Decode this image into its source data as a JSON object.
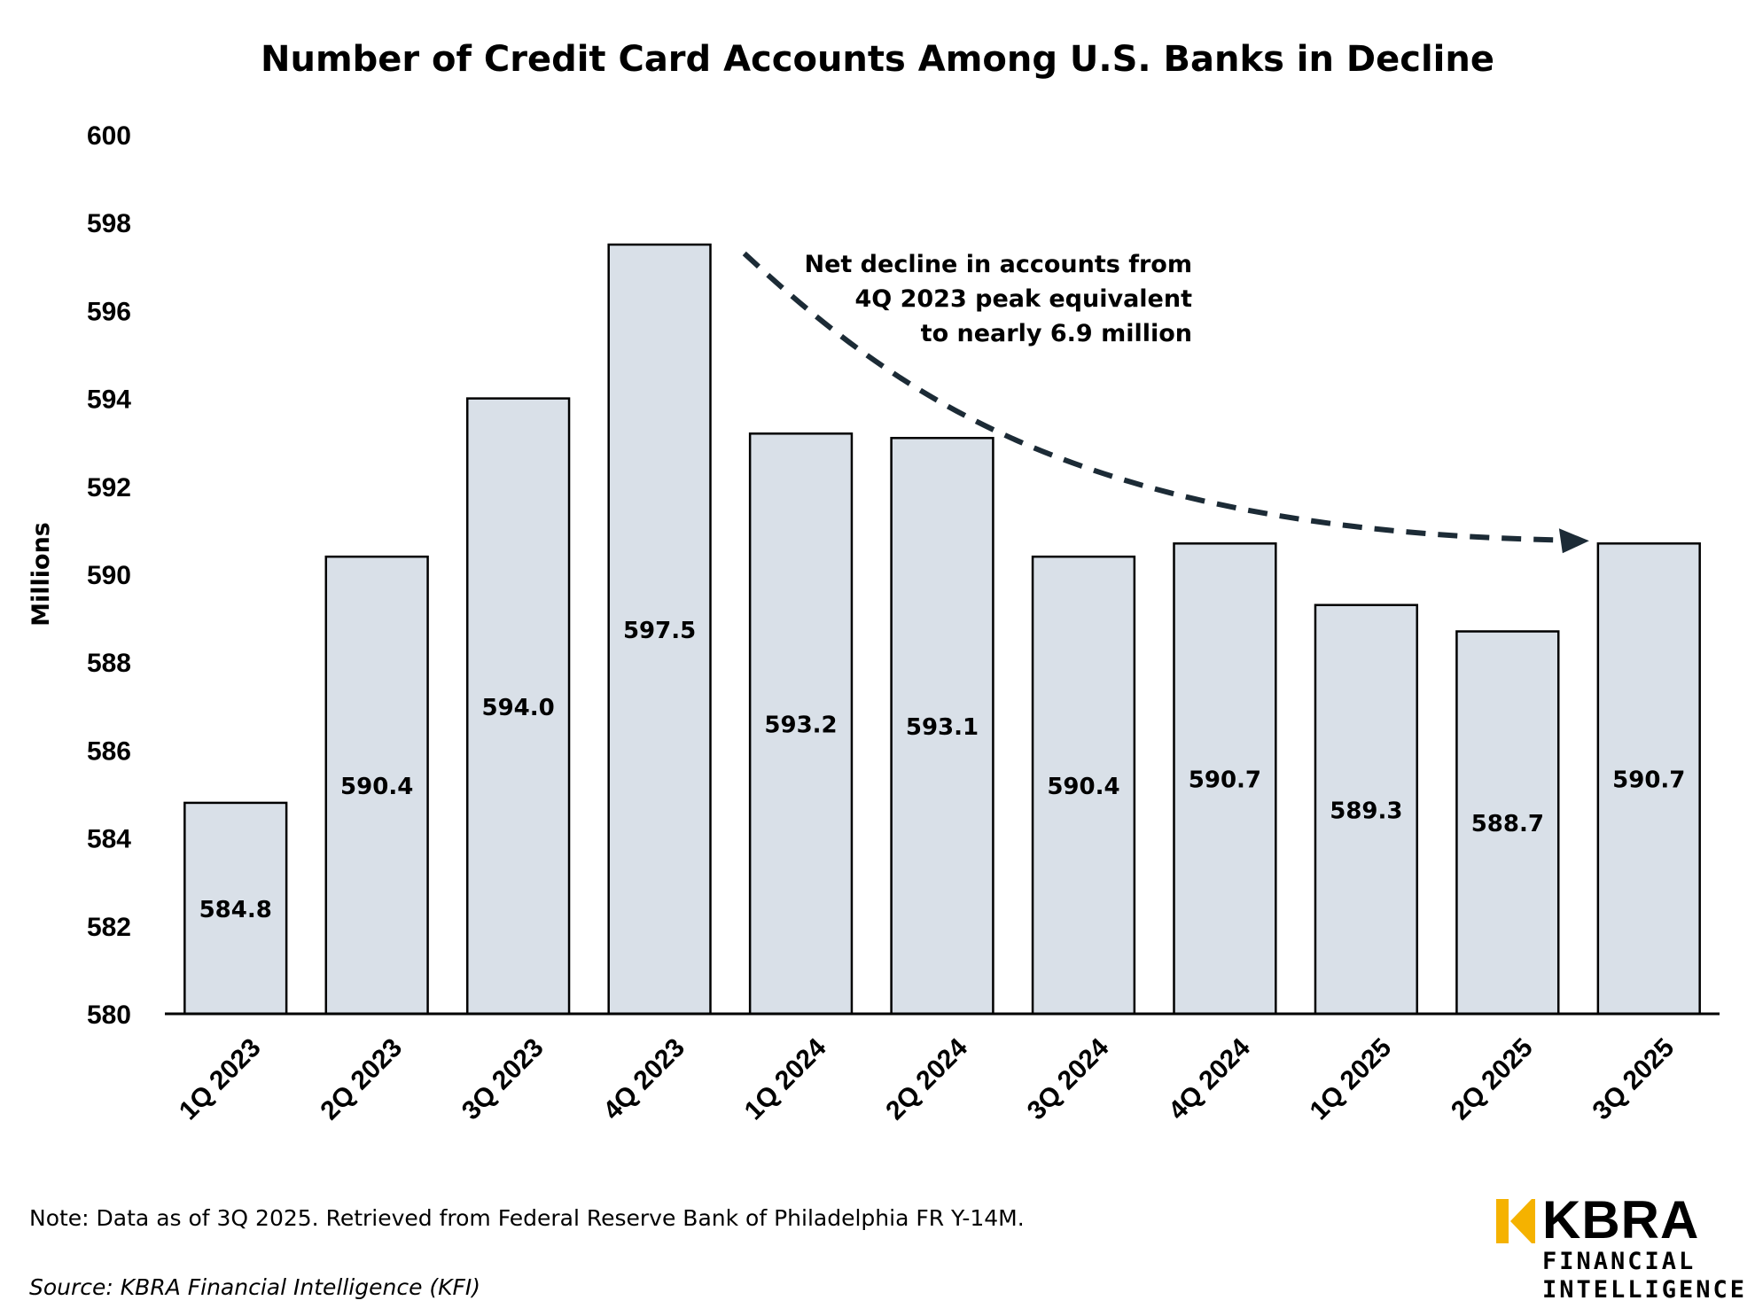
{
  "chart_data": {
    "type": "bar",
    "title": "Number of Credit Card Accounts Among U.S. Banks in Decline",
    "ylabel": "Millions",
    "xlabel": "",
    "ylim": [
      580,
      600
    ],
    "yticks": [
      580,
      582,
      584,
      586,
      588,
      590,
      592,
      594,
      596,
      598,
      600
    ],
    "grid": false,
    "categories": [
      "1Q 2023",
      "2Q 2023",
      "3Q 2023",
      "4Q 2023",
      "1Q 2024",
      "2Q 2024",
      "3Q 2024",
      "4Q 2024",
      "1Q 2025",
      "2Q 2025",
      "3Q 2025"
    ],
    "values": [
      584.8,
      590.4,
      594.0,
      597.5,
      593.2,
      593.1,
      590.4,
      590.7,
      589.3,
      588.7,
      590.7
    ],
    "value_labels": [
      "584.8",
      "590.4",
      "594.0",
      "597.5",
      "593.2",
      "593.1",
      "590.4",
      "590.7",
      "589.3",
      "588.7",
      "590.7"
    ],
    "annotation": {
      "lines": [
        "Net decline in accounts from",
        "4Q 2023 peak equivalent",
        "to nearly 6.9 million"
      ],
      "arrow_from": "4Q 2023",
      "arrow_to": "3Q 2025"
    }
  },
  "footer": {
    "note": "Note: Data as of 3Q 2025. Retrieved from Federal Reserve Bank of Philadelphia FR Y-14M.",
    "source": "Source: KBRA Financial Intelligence (KFI)"
  },
  "logo": {
    "wordmark": "KBRA",
    "line1": "FINANCIAL",
    "line2": "INTELLIGENCE",
    "mark_color": "#f5b200"
  },
  "colors": {
    "bar_fill": "#d9e0e8",
    "bar_stroke": "#000000",
    "arrow": "#1c2b36"
  }
}
